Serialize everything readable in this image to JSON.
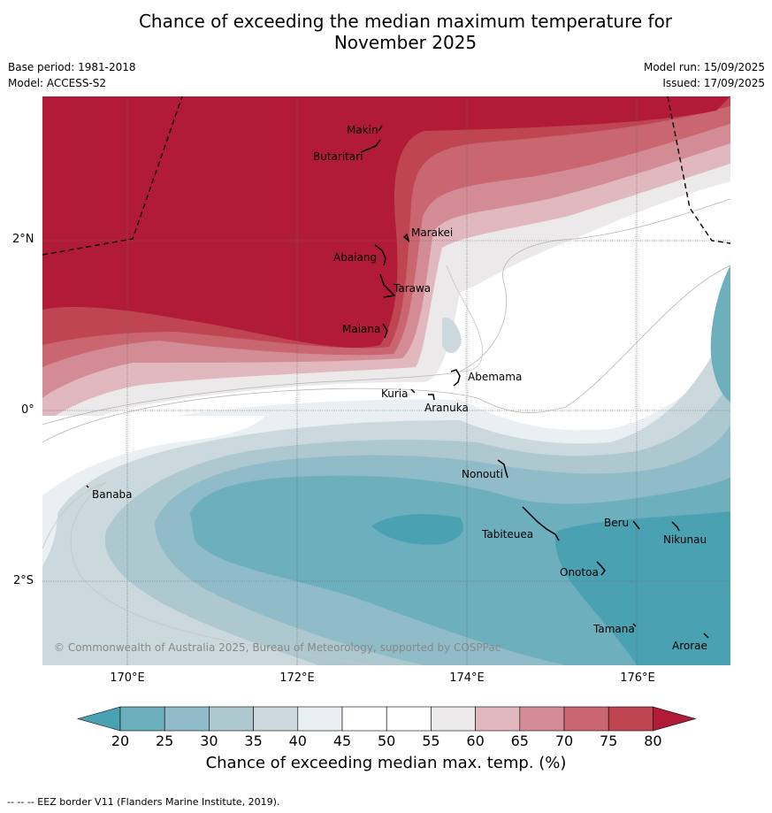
{
  "title_line1": "Chance of exceeding the median maximum temperature for",
  "title_line2": "November 2025",
  "meta": {
    "base_period": "Base period: 1981-2018",
    "model": "Model: ACCESS-S2",
    "model_run": "Model run: 15/09/2025",
    "issued": "Issued: 17/09/2025"
  },
  "axes": {
    "lat_labels": [
      "2°N",
      "0°",
      "2°S"
    ],
    "lon_labels": [
      "170°E",
      "172°E",
      "174°E",
      "176°E"
    ]
  },
  "places": [
    "Makin",
    "Butaritari",
    "Marakei",
    "Abaiang",
    "Tarawa",
    "Maiana",
    "Abemama",
    "Kuria",
    "Aranuka",
    "Banaba",
    "Nonouti",
    "Tabiteuea",
    "Beru",
    "Nikunau",
    "Onotoa",
    "Tamana",
    "Arorae"
  ],
  "copyright": "© Commonwealth of Australia 2025, Bureau of Meteorology, supported by COSPPac",
  "colorbar": {
    "ticks": [
      "20",
      "25",
      "30",
      "35",
      "40",
      "45",
      "50",
      "55",
      "60",
      "65",
      "70",
      "75",
      "80"
    ],
    "colors": [
      "#4aa1b2",
      "#6dafbd",
      "#8fbcc8",
      "#adc9cf",
      "#cbd9de",
      "#e9eff2",
      "#ffffff",
      "#ffffff",
      "#ebe9ea",
      "#e1b8be",
      "#d38c95",
      "#c96670",
      "#bf4552",
      "#b21b37"
    ],
    "label": "Chance of exceeding median max. temp. (%)"
  },
  "footer": "--  --  -- EEZ border V11 (Flanders Marine Institute, 2019)."
}
